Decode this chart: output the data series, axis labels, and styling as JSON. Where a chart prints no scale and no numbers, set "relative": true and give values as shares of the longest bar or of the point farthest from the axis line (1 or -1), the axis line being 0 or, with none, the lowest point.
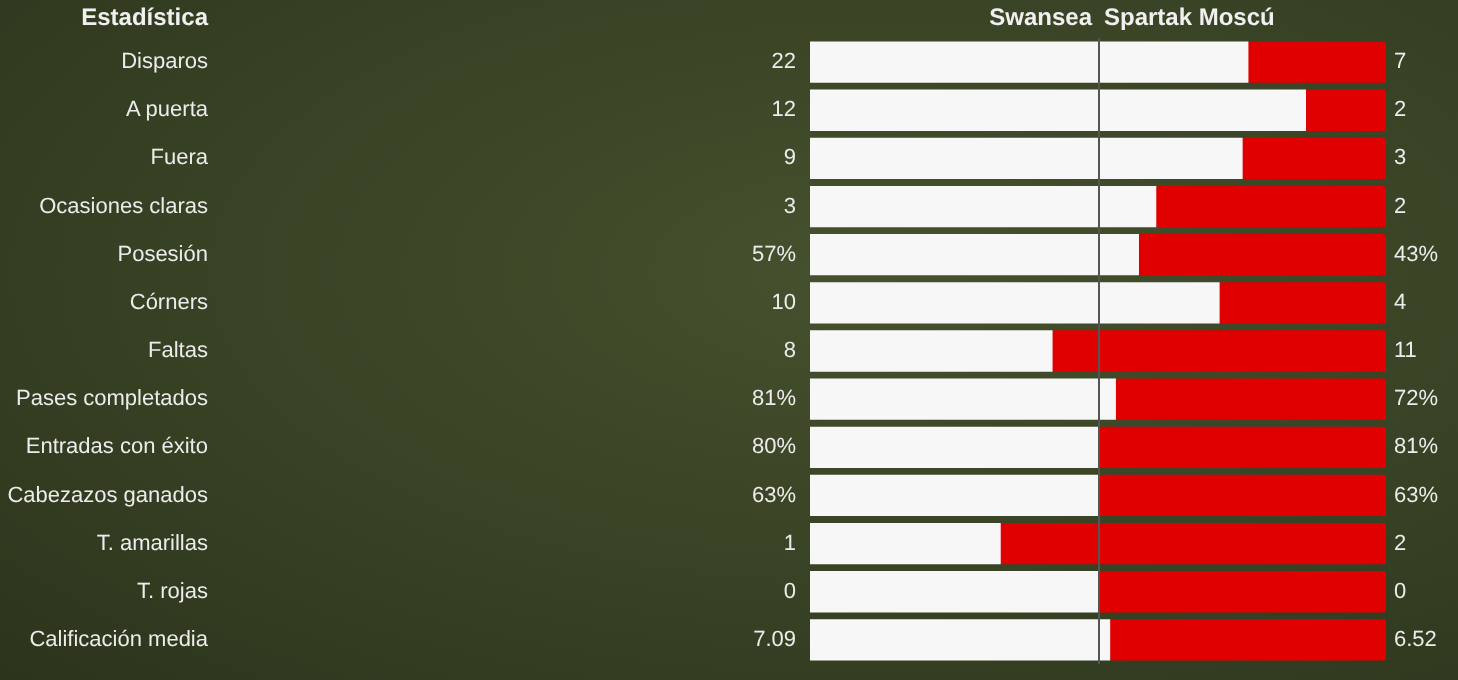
{
  "chart_data": {
    "type": "bar",
    "orientation": "horizontal",
    "stacked": true,
    "relative": true,
    "legend": false,
    "ylabel": "Estadística",
    "categories": [
      "Disparos",
      "A puerta",
      "Fuera",
      "Ocasiones claras",
      "Posesión",
      "Córners",
      "Faltas",
      "Pases completados",
      "Entradas con éxito",
      "Cabezazos ganados",
      "T. amarillas",
      "T. rojas",
      "Calificación media"
    ],
    "series": [
      {
        "name": "Swansea",
        "color": "#f7f7f7",
        "values": [
          0.76,
          0.86,
          0.75,
          0.6,
          0.57,
          0.71,
          0.42,
          0.53,
          0.5,
          0.5,
          0.33,
          0.5,
          0.52
        ]
      },
      {
        "name": "Spartak Moscú",
        "color": "#e00000",
        "values": [
          0.24,
          0.14,
          0.25,
          0.4,
          0.43,
          0.29,
          0.58,
          0.47,
          0.5,
          0.5,
          0.67,
          0.5,
          0.48
        ]
      }
    ],
    "annotations": [
      "22",
      "12",
      "9",
      "3",
      "57%",
      "10",
      "8",
      "81%",
      "80%",
      "63%",
      "1",
      "0",
      "7.09",
      "7",
      "2",
      "3",
      "2",
      "43%",
      "4",
      "11",
      "72%",
      "81%",
      "63%",
      "2",
      "0",
      "6.52"
    ],
    "ref_lines": [
      {
        "axis": "x",
        "value": 0.5,
        "color": "#555555"
      }
    ]
  }
}
